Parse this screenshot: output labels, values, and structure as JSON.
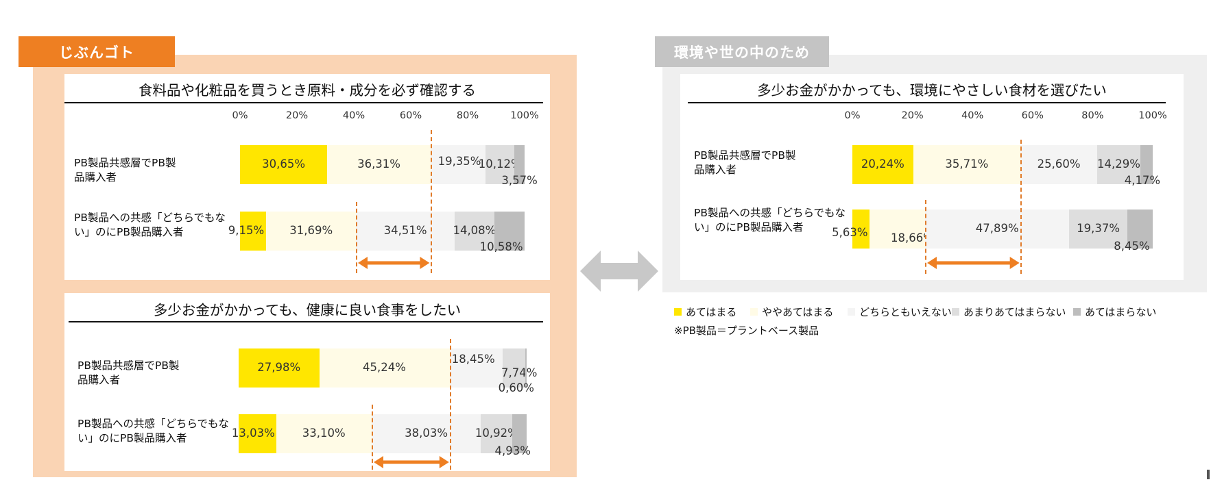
{
  "tags": {
    "left": "じぶんゴト",
    "right": "環境や世の中のため"
  },
  "colors": {
    "segments": [
      "#ffe600",
      "#fffbe6",
      "#f4f4f4",
      "#dedede",
      "#bdbdbd"
    ],
    "accent_orange": "#ee7f22",
    "peach_bg": "#fad4b4",
    "gray_tag": "#c4c4c4",
    "gray_bg": "#efefef",
    "arrow_gray": "#c8c8c8"
  },
  "axis_ticks": [
    "0%",
    "20%",
    "40%",
    "60%",
    "80%",
    "100%"
  ],
  "chart_data": [
    {
      "type": "bar",
      "stacked": true,
      "orientation": "horizontal",
      "title": "食料品や化粧品を買うとき原料・成分を必ず確認する",
      "categories": [
        "PB製品共感層でPB製品購入者",
        "PB製品への共感「どちらでもない」のにPB製品購入者"
      ],
      "series": [
        {
          "name": "あてはまる",
          "values": [
            30.65,
            9.15
          ]
        },
        {
          "name": "ややあてはまる",
          "values": [
            36.31,
            31.69
          ]
        },
        {
          "name": "どちらともいえない",
          "values": [
            19.35,
            34.51
          ]
        },
        {
          "name": "あまりあてはまらない",
          "values": [
            10.12,
            14.08
          ]
        },
        {
          "name": "あてはまらない",
          "values": [
            3.57,
            10.58
          ]
        }
      ],
      "value_labels": [
        [
          "30,65%",
          "36,31%",
          "19,35%",
          "10,12%",
          "3,57%"
        ],
        [
          "9,15%",
          "31,69%",
          "34,51%",
          "14,08%",
          "10,58%"
        ]
      ],
      "xlim": [
        0,
        100
      ]
    },
    {
      "type": "bar",
      "stacked": true,
      "orientation": "horizontal",
      "title": "多少お金がかかっても、健康に良い食事をしたい",
      "categories": [
        "PB製品共感層でPB製品購入者",
        "PB製品への共感「どちらでもない」のにPB製品購入者"
      ],
      "series": [
        {
          "name": "あてはまる",
          "values": [
            27.98,
            13.03
          ]
        },
        {
          "name": "ややあてはまる",
          "values": [
            45.24,
            33.1
          ]
        },
        {
          "name": "どちらともいえない",
          "values": [
            18.45,
            38.03
          ]
        },
        {
          "name": "あまりあてはまらない",
          "values": [
            7.74,
            10.92
          ]
        },
        {
          "name": "あてはまらない",
          "values": [
            0.6,
            4.93
          ]
        }
      ],
      "value_labels": [
        [
          "27,98%",
          "45,24%",
          "18,45%",
          "7,74%",
          "0,60%"
        ],
        [
          "13,03%",
          "33,10%",
          "38,03%",
          "10,92%",
          "4,93%"
        ]
      ],
      "xlim": [
        0,
        100
      ]
    },
    {
      "type": "bar",
      "stacked": true,
      "orientation": "horizontal",
      "title": "多少お金がかかっても、環境にやさしい食材を選びたい",
      "categories": [
        "PB製品共感層でPB製品購入者",
        "PB製品への共感「どちらでもない」のにPB製品購入者"
      ],
      "series": [
        {
          "name": "あてはまる",
          "values": [
            20.24,
            5.63
          ]
        },
        {
          "name": "ややあてはまる",
          "values": [
            35.71,
            18.66
          ]
        },
        {
          "name": "どちらともいえない",
          "values": [
            25.6,
            47.89
          ]
        },
        {
          "name": "あまりあてはまらない",
          "values": [
            14.29,
            19.37
          ]
        },
        {
          "name": "あてはまらない",
          "values": [
            4.17,
            8.45
          ]
        }
      ],
      "value_labels": [
        [
          "20,24%",
          "35,71%",
          "25,60%",
          "14,29%",
          "4,17%"
        ],
        [
          "5,63%",
          "18,66%",
          "47,89%",
          "19,37%",
          "8,45%"
        ]
      ],
      "xlim": [
        0,
        100
      ]
    }
  ],
  "row_labels": {
    "row1": [
      "PB製品共感層でPB製",
      "品購入者"
    ],
    "row2": [
      "PB製品への共感「どちらでもな",
      "い」のにPB製品購入者"
    ]
  },
  "legend": [
    "あてはまる",
    "ややあてはまる",
    "どちらともいえない",
    "あまりあてはまらない",
    "あてはまらない"
  ],
  "footnote": "※PB製品＝プラントベース製品"
}
